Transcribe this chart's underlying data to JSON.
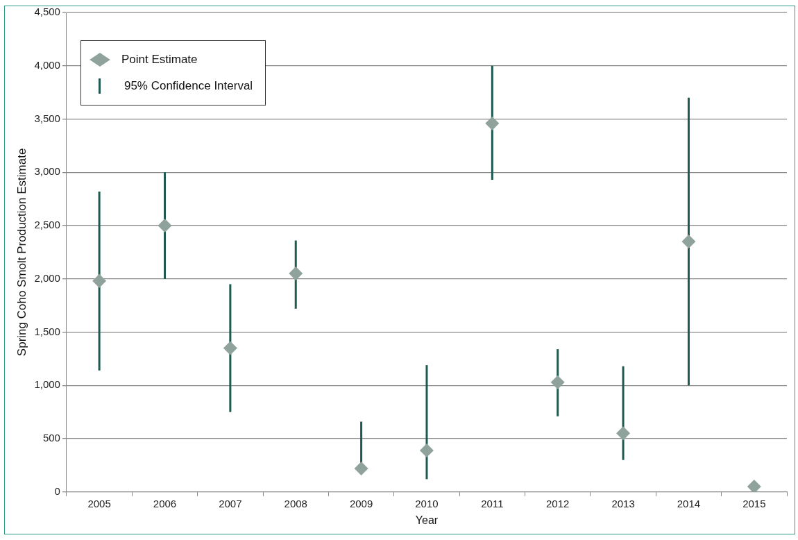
{
  "chart_data": {
    "type": "scatter",
    "categories": [
      "2005",
      "2006",
      "2007",
      "2008",
      "2009",
      "2010",
      "2011",
      "2012",
      "2013",
      "2014",
      "2015"
    ],
    "series": [
      {
        "name": "Point Estimate",
        "color": "#8fa39c",
        "values": [
          1980,
          2500,
          1350,
          2050,
          220,
          390,
          3460,
          1030,
          550,
          2350,
          50
        ],
        "errors": [
          [
            1140,
            2820
          ],
          [
            2000,
            3000
          ],
          [
            750,
            1950
          ],
          [
            1720,
            2360
          ],
          [
            200,
            660
          ],
          [
            120,
            1190
          ],
          [
            2930,
            4000
          ],
          [
            710,
            1340
          ],
          [
            300,
            1180
          ],
          [
            1000,
            3700
          ],
          null
        ]
      }
    ],
    "xlabel": "Year",
    "ylabel": "Spring Coho Smolt Production Estimate",
    "ylim": [
      0,
      4500
    ],
    "yticks": [
      0,
      500,
      {
        "value": 1000,
        "label": "1,000"
      },
      {
        "value": 1500,
        "label": "1,500"
      },
      {
        "value": 2000,
        "label": "2,000"
      },
      {
        "value": 2500,
        "label": "2,500"
      },
      {
        "value": 3000,
        "label": "3,000"
      },
      {
        "value": 3500,
        "label": "3,500"
      },
      {
        "value": 4000,
        "label": "4,000"
      },
      {
        "value": 4500,
        "label": "4,500"
      }
    ],
    "grid": "y",
    "legend": "top left",
    "marker": "diamond",
    "annotations": [
      "95% Confidence Interval"
    ]
  }
}
